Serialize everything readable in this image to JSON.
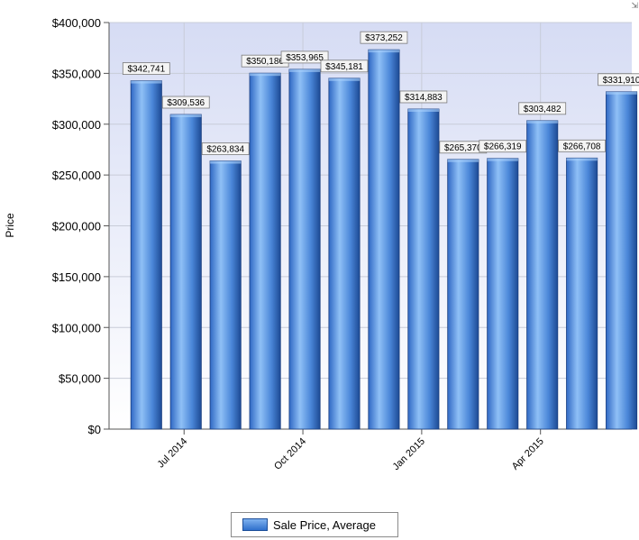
{
  "chart_data": {
    "type": "bar",
    "ylabel": "Price",
    "ylim": [
      0,
      400000
    ],
    "yticks": [
      "$0",
      "$50,000",
      "$100,000",
      "$150,000",
      "$200,000",
      "$250,000",
      "$300,000",
      "$350,000",
      "$400,000"
    ],
    "xticks": [
      {
        "label": "Jul 2014",
        "index": 1
      },
      {
        "label": "Oct 2014",
        "index": 4
      },
      {
        "label": "Jan 2015",
        "index": 7
      },
      {
        "label": "Apr 2015",
        "index": 10
      }
    ],
    "series": [
      {
        "name": "Sale Price, Average",
        "values": [
          342741,
          309536,
          263834,
          350186,
          353965,
          345181,
          373252,
          314883,
          265370,
          266319,
          303482,
          266708,
          331910
        ],
        "labels": [
          "$342,741",
          "$309,536",
          "$263,834",
          "$350,186",
          "$353,965",
          "$345,181",
          "$373,252",
          "$314,883",
          "$265,370",
          "$266,319",
          "$303,482",
          "$266,708",
          "$331,910"
        ]
      }
    ],
    "grid": true,
    "legend_position": "bottom-center",
    "colors": {
      "bar_light": "#86b8f2",
      "bar_dark": "#1f4f9e",
      "plot_bg_top": "#d6dcf4",
      "plot_bg_bottom": "#ffffff"
    }
  },
  "legend": {
    "label": "Sale Price, Average"
  },
  "window": {
    "resize_icon": "resize-icon"
  }
}
